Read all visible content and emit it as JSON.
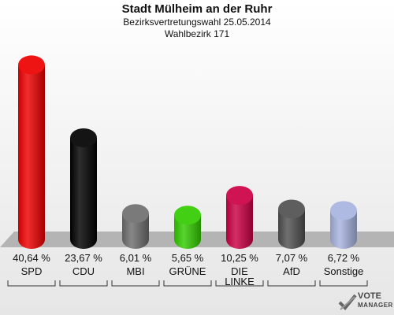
{
  "header": {
    "title": "Stadt Mülheim an der Ruhr",
    "subtitle": "Bezirksvertretungswahl 25.05.2014",
    "subtitle2": "Wahlbezirk 171"
  },
  "logo": {
    "line1": "VOTE",
    "line2": "MANAGER"
  },
  "chart_data": {
    "type": "bar",
    "categories": [
      "SPD",
      "CDU",
      "MBI",
      "GRÜNE",
      "DIE\nLINKE",
      "AfD",
      "Sonstige"
    ],
    "value_labels": [
      "40,64 %",
      "23,67 %",
      "6,01 %",
      "5,65 %",
      "10,25 %",
      "7,07 %",
      "6,72 %"
    ],
    "values": [
      40.64,
      23.67,
      6.01,
      5.65,
      10.25,
      7.07,
      6.72
    ],
    "colors": [
      "#ee0000",
      "#000000",
      "#6e6e6e",
      "#33cc00",
      "#cc0044",
      "#505050",
      "#a8b4e0"
    ],
    "title": "Stadt Mülheim an der Ruhr",
    "xlabel": "",
    "ylabel": "",
    "ylim": [
      0,
      42
    ],
    "grid": false,
    "legend": "none"
  }
}
